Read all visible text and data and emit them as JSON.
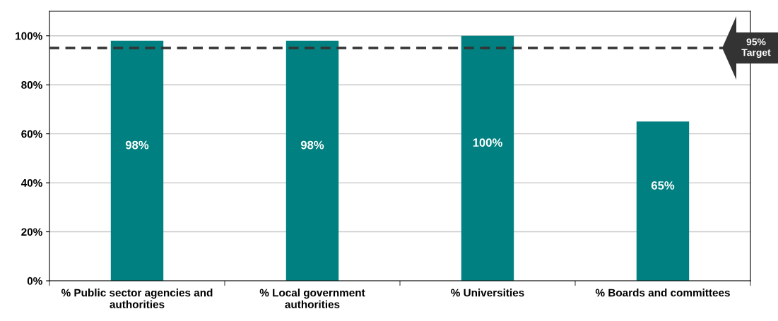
{
  "chart_data": {
    "type": "bar",
    "categories": [
      "% Public sector agencies and\nauthorities",
      "% Local government\nauthorities",
      "% Universities",
      "% Boards and committees"
    ],
    "values": [
      98,
      98,
      100,
      65
    ],
    "color": "#008080",
    "value_labels": [
      "98%",
      "98%",
      "100%",
      "65%"
    ],
    "ylim": [
      0,
      110
    ],
    "yticks": [
      {
        "value": 0,
        "label": "0%"
      },
      {
        "value": 20,
        "label": "20%"
      },
      {
        "value": 40,
        "label": "40%"
      },
      {
        "value": 60,
        "label": "60%"
      },
      {
        "value": 80,
        "label": "80%"
      },
      {
        "value": 100,
        "label": "100%"
      }
    ],
    "grid": "y",
    "ref_lines": [
      {
        "axis": "y",
        "value": 95,
        "label": "95%\nTarget",
        "color": "#333333",
        "line_style": "dashed"
      }
    ]
  }
}
